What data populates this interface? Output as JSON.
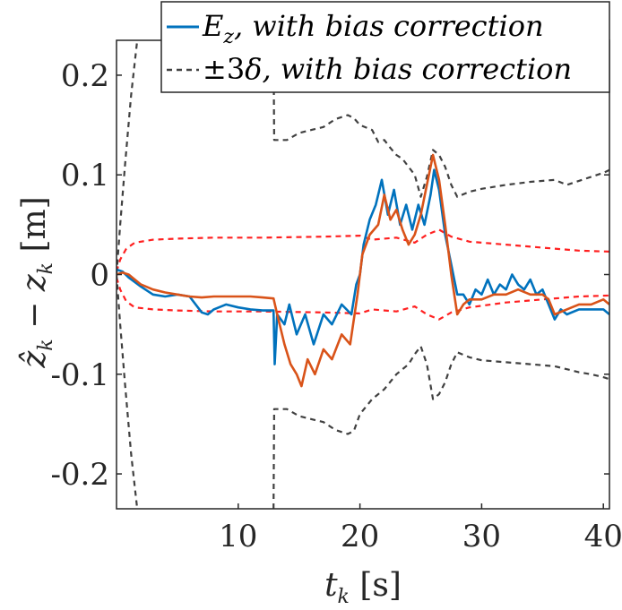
{
  "chart_data": {
    "type": "line",
    "xlabel": "t_k [s]",
    "ylabel": "ẑ_k − z_k [m]",
    "xlim": [
      0,
      40.5
    ],
    "ylim": [
      -0.235,
      0.235
    ],
    "x_ticks": [
      "10",
      "20",
      "30",
      "40"
    ],
    "y_ticks": [
      "0.2",
      "0.1",
      "0",
      "-0.1",
      "-0.2"
    ],
    "grid": false,
    "legend_position": "top-right",
    "legend": [
      {
        "label": "E_z,  with bias correction",
        "style": "solid",
        "color": "#0072bd"
      },
      {
        "label": "±3δ, with bias correction",
        "style": "dashed",
        "color": "#404040"
      }
    ],
    "series": [
      {
        "name": "E_z,  with bias correction",
        "style": "solid",
        "color": "#0072bd",
        "points": [
          [
            0,
            0.005
          ],
          [
            0.5,
            0.003
          ],
          [
            1,
            -0.003
          ],
          [
            2,
            -0.012
          ],
          [
            3,
            -0.02
          ],
          [
            4,
            -0.022
          ],
          [
            5,
            -0.02
          ],
          [
            6,
            -0.022
          ],
          [
            7,
            -0.038
          ],
          [
            7.5,
            -0.04
          ],
          [
            8,
            -0.035
          ],
          [
            9,
            -0.03
          ],
          [
            10,
            -0.033
          ],
          [
            11,
            -0.035
          ],
          [
            12,
            -0.036
          ],
          [
            12.9,
            -0.036
          ],
          [
            13,
            -0.09
          ],
          [
            13.2,
            -0.04
          ],
          [
            13.8,
            -0.05
          ],
          [
            14.2,
            -0.03
          ],
          [
            14.8,
            -0.06
          ],
          [
            15.5,
            -0.04
          ],
          [
            16.2,
            -0.07
          ],
          [
            17,
            -0.04
          ],
          [
            17.7,
            -0.05
          ],
          [
            18.5,
            -0.03
          ],
          [
            19.3,
            -0.04
          ],
          [
            19.7,
            -0.01
          ],
          [
            20,
            0.0
          ],
          [
            20.3,
            0.03
          ],
          [
            20.8,
            0.055
          ],
          [
            21.3,
            0.07
          ],
          [
            21.8,
            0.095
          ],
          [
            22.3,
            0.06
          ],
          [
            22.8,
            0.085
          ],
          [
            23.3,
            0.05
          ],
          [
            23.8,
            0.07
          ],
          [
            24.3,
            0.045
          ],
          [
            24.8,
            0.07
          ],
          [
            25.3,
            0.05
          ],
          [
            25.8,
            0.08
          ],
          [
            26.1,
            0.105
          ],
          [
            26.5,
            0.085
          ],
          [
            27,
            0.04
          ],
          [
            27.5,
            0.01
          ],
          [
            28,
            -0.02
          ],
          [
            28.5,
            -0.02
          ],
          [
            29,
            -0.03
          ],
          [
            29.5,
            -0.015
          ],
          [
            30,
            -0.02
          ],
          [
            30.5,
            -0.005
          ],
          [
            31,
            -0.02
          ],
          [
            31.5,
            -0.01
          ],
          [
            32,
            -0.015
          ],
          [
            32.5,
            0.0
          ],
          [
            33,
            -0.01
          ],
          [
            33.5,
            -0.015
          ],
          [
            34,
            -0.005
          ],
          [
            34.5,
            -0.02
          ],
          [
            35,
            -0.015
          ],
          [
            35.5,
            -0.03
          ],
          [
            36,
            -0.045
          ],
          [
            36.5,
            -0.035
          ],
          [
            37,
            -0.04
          ],
          [
            38,
            -0.035
          ],
          [
            39,
            -0.035
          ],
          [
            40,
            -0.035
          ],
          [
            40.5,
            -0.04
          ]
        ]
      },
      {
        "name": "",
        "style": "solid",
        "color": "#d95319",
        "points": [
          [
            0,
            0.0
          ],
          [
            0.5,
            0.002
          ],
          [
            1,
            0.0
          ],
          [
            2,
            -0.01
          ],
          [
            3,
            -0.015
          ],
          [
            4,
            -0.018
          ],
          [
            5,
            -0.02
          ],
          [
            6,
            -0.022
          ],
          [
            7,
            -0.023
          ],
          [
            8,
            -0.022
          ],
          [
            9,
            -0.022
          ],
          [
            10,
            -0.022
          ],
          [
            11,
            -0.022
          ],
          [
            12,
            -0.023
          ],
          [
            12.9,
            -0.024
          ],
          [
            13.2,
            -0.04
          ],
          [
            13.8,
            -0.07
          ],
          [
            14.3,
            -0.09
          ],
          [
            14.8,
            -0.1
          ],
          [
            15.2,
            -0.112
          ],
          [
            15.7,
            -0.085
          ],
          [
            16.3,
            -0.1
          ],
          [
            17,
            -0.075
          ],
          [
            17.7,
            -0.085
          ],
          [
            18.5,
            -0.06
          ],
          [
            19.2,
            -0.07
          ],
          [
            19.8,
            -0.02
          ],
          [
            20.2,
            0.02
          ],
          [
            20.8,
            0.04
          ],
          [
            21.5,
            0.05
          ],
          [
            22,
            0.08
          ],
          [
            22.5,
            0.055
          ],
          [
            23,
            0.065
          ],
          [
            23.5,
            0.045
          ],
          [
            24,
            0.03
          ],
          [
            24.5,
            0.04
          ],
          [
            25,
            0.06
          ],
          [
            25.5,
            0.09
          ],
          [
            26,
            0.12
          ],
          [
            26.5,
            0.095
          ],
          [
            27,
            0.05
          ],
          [
            27.5,
            0.0
          ],
          [
            28,
            -0.04
          ],
          [
            28.5,
            -0.03
          ],
          [
            29,
            -0.025
          ],
          [
            30,
            -0.025
          ],
          [
            31,
            -0.02
          ],
          [
            32,
            -0.02
          ],
          [
            33,
            -0.015
          ],
          [
            34,
            -0.02
          ],
          [
            35,
            -0.02
          ],
          [
            35.5,
            -0.025
          ],
          [
            36,
            -0.04
          ],
          [
            37,
            -0.035
          ],
          [
            38,
            -0.03
          ],
          [
            39,
            -0.03
          ],
          [
            40,
            -0.025
          ],
          [
            40.5,
            -0.03
          ]
        ]
      },
      {
        "name": "",
        "style": "dashed",
        "color": "#ff2020",
        "points": [
          [
            0,
            0.003
          ],
          [
            0.3,
            0.015
          ],
          [
            0.8,
            0.026
          ],
          [
            1.5,
            0.032
          ],
          [
            3,
            0.035
          ],
          [
            5,
            0.036
          ],
          [
            8,
            0.037
          ],
          [
            12,
            0.037
          ],
          [
            17,
            0.038
          ],
          [
            20,
            0.039
          ],
          [
            21,
            0.035
          ],
          [
            23,
            0.037
          ],
          [
            24.5,
            0.032
          ],
          [
            25.5,
            0.04
          ],
          [
            26.5,
            0.045
          ],
          [
            27.5,
            0.038
          ],
          [
            29,
            0.033
          ],
          [
            32,
            0.03
          ],
          [
            35,
            0.027
          ],
          [
            38,
            0.024
          ],
          [
            40.5,
            0.023
          ]
        ]
      },
      {
        "name": "",
        "style": "dashed",
        "color": "#ff2020",
        "points": [
          [
            0,
            -0.003
          ],
          [
            0.3,
            -0.015
          ],
          [
            0.8,
            -0.027
          ],
          [
            1.5,
            -0.033
          ],
          [
            3,
            -0.035
          ],
          [
            5,
            -0.036
          ],
          [
            8,
            -0.037
          ],
          [
            12,
            -0.037
          ],
          [
            17,
            -0.038
          ],
          [
            20,
            -0.039
          ],
          [
            21,
            -0.035
          ],
          [
            23,
            -0.037
          ],
          [
            24.5,
            -0.032
          ],
          [
            25.5,
            -0.04
          ],
          [
            26.5,
            -0.045
          ],
          [
            27.5,
            -0.038
          ],
          [
            29,
            -0.033
          ],
          [
            32,
            -0.028
          ],
          [
            35,
            -0.025
          ],
          [
            38,
            -0.022
          ],
          [
            40.5,
            -0.021
          ]
        ]
      },
      {
        "name": "±3δ, with bias correction",
        "style": "dashed",
        "color": "#404040",
        "points": [
          [
            0,
            0.0
          ],
          [
            0.3,
            0.05
          ],
          [
            0.7,
            0.11
          ],
          [
            1.2,
            0.18
          ],
          [
            1.7,
            0.235
          ]
        ]
      },
      {
        "name": "",
        "style": "dashed",
        "color": "#404040",
        "points": [
          [
            0,
            0.0
          ],
          [
            0.3,
            -0.05
          ],
          [
            0.7,
            -0.11
          ],
          [
            1.2,
            -0.18
          ],
          [
            1.7,
            -0.235
          ]
        ]
      },
      {
        "name": "",
        "style": "dashed",
        "color": "#404040",
        "points": [
          [
            12.9,
            0.235
          ],
          [
            12.95,
            0.135
          ],
          [
            14,
            0.135
          ],
          [
            15,
            0.142
          ],
          [
            16,
            0.145
          ],
          [
            17,
            0.148
          ],
          [
            18,
            0.156
          ],
          [
            19,
            0.16
          ],
          [
            19.5,
            0.157
          ],
          [
            20,
            0.15
          ],
          [
            21,
            0.145
          ],
          [
            21.5,
            0.133
          ],
          [
            22,
            0.135
          ],
          [
            22.5,
            0.127
          ],
          [
            23,
            0.12
          ],
          [
            23.5,
            0.116
          ],
          [
            24,
            0.108
          ],
          [
            24.5,
            0.1
          ],
          [
            25,
            0.078
          ],
          [
            25.5,
            0.098
          ],
          [
            26,
            0.125
          ],
          [
            26.5,
            0.12
          ],
          [
            27,
            0.108
          ],
          [
            27.5,
            0.09
          ],
          [
            28,
            0.078
          ],
          [
            29,
            0.083
          ],
          [
            30,
            0.086
          ],
          [
            32,
            0.09
          ],
          [
            34,
            0.093
          ],
          [
            36,
            0.095
          ],
          [
            37,
            0.09
          ],
          [
            38,
            0.094
          ],
          [
            39,
            0.098
          ],
          [
            40,
            0.102
          ],
          [
            40.5,
            0.105
          ]
        ]
      },
      {
        "name": "",
        "style": "dashed",
        "color": "#404040",
        "points": [
          [
            12.9,
            -0.235
          ],
          [
            12.95,
            -0.135
          ],
          [
            14,
            -0.135
          ],
          [
            15,
            -0.142
          ],
          [
            16,
            -0.145
          ],
          [
            17,
            -0.148
          ],
          [
            18,
            -0.156
          ],
          [
            19,
            -0.16
          ],
          [
            19.5,
            -0.157
          ],
          [
            20,
            -0.14
          ],
          [
            21,
            -0.125
          ],
          [
            22,
            -0.115
          ],
          [
            23,
            -0.1
          ],
          [
            24,
            -0.09
          ],
          [
            24.5,
            -0.08
          ],
          [
            25,
            -0.072
          ],
          [
            25.5,
            -0.09
          ],
          [
            26,
            -0.125
          ],
          [
            26.5,
            -0.12
          ],
          [
            27,
            -0.108
          ],
          [
            27.5,
            -0.09
          ],
          [
            28,
            -0.078
          ],
          [
            29,
            -0.083
          ],
          [
            30,
            -0.086
          ],
          [
            32,
            -0.088
          ],
          [
            34,
            -0.09
          ],
          [
            36,
            -0.092
          ],
          [
            37,
            -0.095
          ],
          [
            38,
            -0.098
          ],
          [
            39,
            -0.1
          ],
          [
            40,
            -0.103
          ],
          [
            40.5,
            -0.105
          ]
        ]
      }
    ]
  }
}
